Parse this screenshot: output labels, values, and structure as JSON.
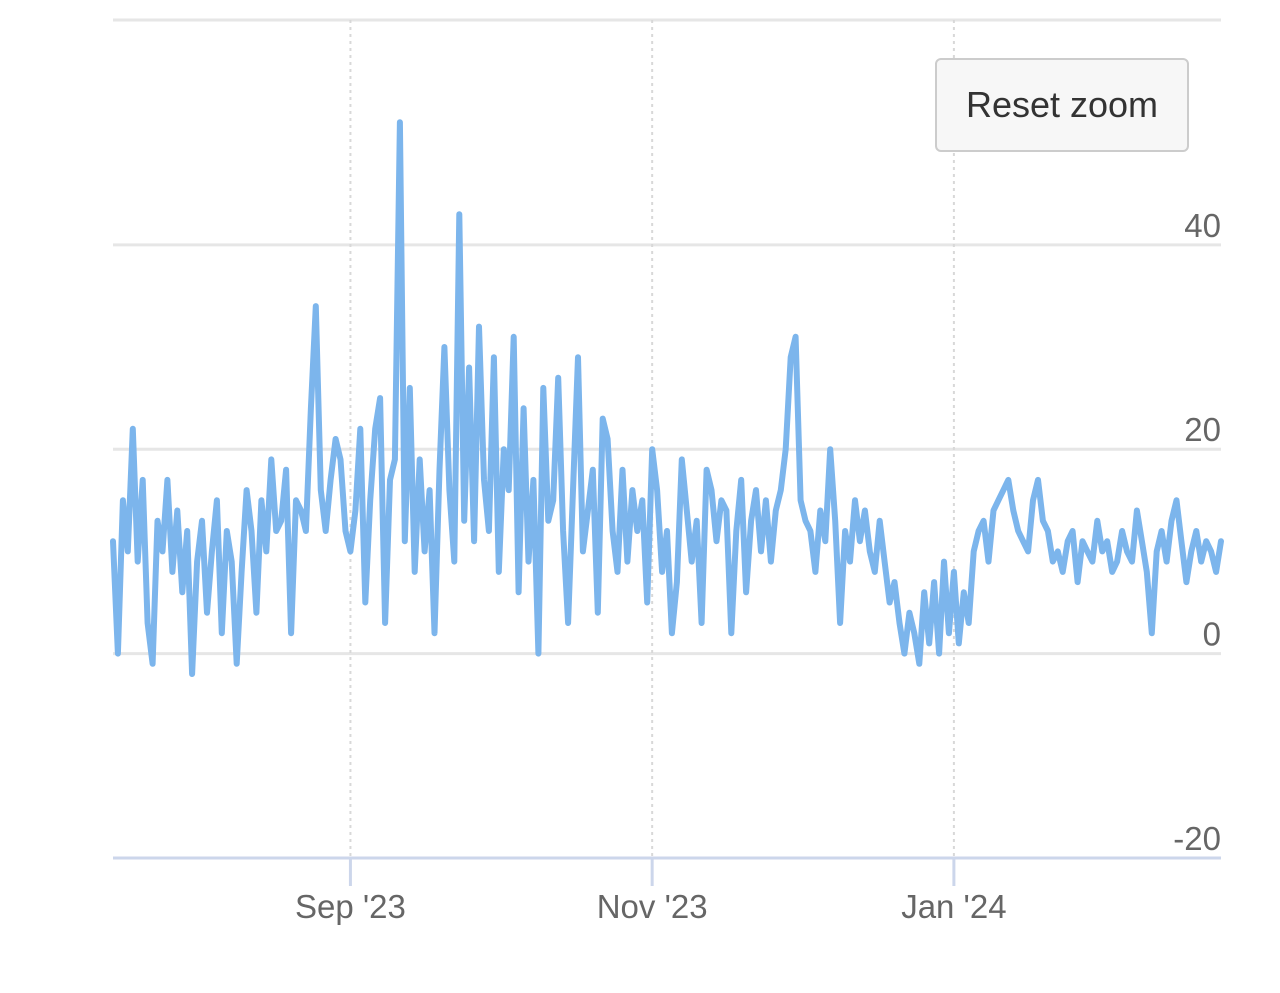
{
  "colors": {
    "series": "#7cb5ec",
    "grid": "#e6e6e6",
    "axis_line": "#ccd6eb",
    "tick_text": "#666666"
  },
  "reset_zoom": {
    "label": "Reset zoom"
  },
  "chart_data": {
    "type": "line",
    "title": "",
    "xlabel": "",
    "ylabel": "",
    "x_ticks": [
      {
        "date": "2023-09-01",
        "label": "Sep '23"
      },
      {
        "date": "2023-11-01",
        "label": "Nov '23"
      },
      {
        "date": "2024-01-01",
        "label": "Jan '24"
      }
    ],
    "xlim": [
      "2023-07-15",
      "2024-02-24"
    ],
    "ylim": [
      -20,
      62
    ],
    "y_ticks": [
      -20,
      0,
      20,
      40
    ],
    "y_axis_side": "right",
    "grid": {
      "horizontal": true,
      "vertical": "dotted"
    },
    "legend": "none",
    "series": [
      {
        "x": [
          "2023-07-15",
          "2023-07-16",
          "2023-07-17",
          "2023-07-18",
          "2023-07-19",
          "2023-07-20",
          "2023-07-21",
          "2023-07-22",
          "2023-07-23",
          "2023-07-24",
          "2023-07-25",
          "2023-07-26",
          "2023-07-27",
          "2023-07-28",
          "2023-07-29",
          "2023-07-30",
          "2023-07-31",
          "2023-08-01",
          "2023-08-02",
          "2023-08-03",
          "2023-08-04",
          "2023-08-05",
          "2023-08-06",
          "2023-08-07",
          "2023-08-08",
          "2023-08-09",
          "2023-08-10",
          "2023-08-11",
          "2023-08-12",
          "2023-08-13",
          "2023-08-14",
          "2023-08-15",
          "2023-08-16",
          "2023-08-17",
          "2023-08-18",
          "2023-08-19",
          "2023-08-20",
          "2023-08-21",
          "2023-08-22",
          "2023-08-23",
          "2023-08-24",
          "2023-08-25",
          "2023-08-26",
          "2023-08-27",
          "2023-08-28",
          "2023-08-29",
          "2023-08-30",
          "2023-08-31",
          "2023-09-01",
          "2023-09-02",
          "2023-09-03",
          "2023-09-04",
          "2023-09-05",
          "2023-09-06",
          "2023-09-07",
          "2023-09-08",
          "2023-09-09",
          "2023-09-10",
          "2023-09-11",
          "2023-09-12",
          "2023-09-13",
          "2023-09-14",
          "2023-09-15",
          "2023-09-16",
          "2023-09-17",
          "2023-09-18",
          "2023-09-19",
          "2023-09-20",
          "2023-09-21",
          "2023-09-22",
          "2023-09-23",
          "2023-09-24",
          "2023-09-25",
          "2023-09-26",
          "2023-09-27",
          "2023-09-28",
          "2023-09-29",
          "2023-09-30",
          "2023-10-01",
          "2023-10-02",
          "2023-10-03",
          "2023-10-04",
          "2023-10-05",
          "2023-10-06",
          "2023-10-07",
          "2023-10-08",
          "2023-10-09",
          "2023-10-10",
          "2023-10-11",
          "2023-10-12",
          "2023-10-13",
          "2023-10-14",
          "2023-10-15",
          "2023-10-16",
          "2023-10-17",
          "2023-10-18",
          "2023-10-19",
          "2023-10-20",
          "2023-10-21",
          "2023-10-22",
          "2023-10-23",
          "2023-10-24",
          "2023-10-25",
          "2023-10-26",
          "2023-10-27",
          "2023-10-28",
          "2023-10-29",
          "2023-10-30",
          "2023-10-31",
          "2023-11-01",
          "2023-11-02",
          "2023-11-03",
          "2023-11-04",
          "2023-11-05",
          "2023-11-06",
          "2023-11-07",
          "2023-11-08",
          "2023-11-09",
          "2023-11-10",
          "2023-11-11",
          "2023-11-12",
          "2023-11-13",
          "2023-11-14",
          "2023-11-15",
          "2023-11-16",
          "2023-11-17",
          "2023-11-18",
          "2023-11-19",
          "2023-11-20",
          "2023-11-21",
          "2023-11-22",
          "2023-11-23",
          "2023-11-24",
          "2023-11-25",
          "2023-11-26",
          "2023-11-27",
          "2023-11-28",
          "2023-11-29",
          "2023-11-30",
          "2023-12-01",
          "2023-12-02",
          "2023-12-03",
          "2023-12-04",
          "2023-12-05",
          "2023-12-06",
          "2023-12-07",
          "2023-12-08",
          "2023-12-09",
          "2023-12-10",
          "2023-12-11",
          "2023-12-12",
          "2023-12-13",
          "2023-12-14",
          "2023-12-15",
          "2023-12-16",
          "2023-12-17",
          "2023-12-18",
          "2023-12-19",
          "2023-12-20",
          "2023-12-21",
          "2023-12-22",
          "2023-12-23",
          "2023-12-24",
          "2023-12-25",
          "2023-12-26",
          "2023-12-27",
          "2023-12-28",
          "2023-12-29",
          "2023-12-30",
          "2023-12-31",
          "2024-01-01",
          "2024-01-02",
          "2024-01-03",
          "2024-01-04",
          "2024-01-05",
          "2024-01-06",
          "2024-01-07",
          "2024-01-08",
          "2024-01-09",
          "2024-01-10",
          "2024-01-11",
          "2024-01-12",
          "2024-01-13",
          "2024-01-14",
          "2024-01-15",
          "2024-01-16",
          "2024-01-17",
          "2024-01-18",
          "2024-01-19",
          "2024-01-20",
          "2024-01-21",
          "2024-01-22",
          "2024-01-23",
          "2024-01-24",
          "2024-01-25",
          "2024-01-26",
          "2024-01-27",
          "2024-01-28",
          "2024-01-29",
          "2024-01-30",
          "2024-01-31",
          "2024-02-01",
          "2024-02-02",
          "2024-02-03",
          "2024-02-04",
          "2024-02-05",
          "2024-02-06",
          "2024-02-07",
          "2024-02-08",
          "2024-02-09",
          "2024-02-10",
          "2024-02-11",
          "2024-02-12",
          "2024-02-13",
          "2024-02-14",
          "2024-02-15",
          "2024-02-16",
          "2024-02-17",
          "2024-02-18",
          "2024-02-19",
          "2024-02-20",
          "2024-02-21",
          "2024-02-22",
          "2024-02-23",
          "2024-02-24"
        ],
        "y": [
          11,
          0,
          15,
          10,
          22,
          9,
          17,
          3,
          -1,
          13,
          10,
          17,
          8,
          14,
          6,
          12,
          -2,
          9,
          13,
          4,
          10,
          15,
          2,
          12,
          9,
          -1,
          8,
          16,
          12,
          4,
          15,
          10,
          19,
          12,
          13,
          18,
          2,
          15,
          14,
          12,
          24,
          34,
          16,
          12,
          17,
          21,
          19,
          12,
          10,
          14,
          22,
          5,
          15,
          22,
          25,
          3,
          17,
          19,
          52,
          11,
          26,
          8,
          19,
          10,
          16,
          2,
          18,
          30,
          16,
          9,
          43,
          13,
          28,
          11,
          32,
          17,
          12,
          29,
          8,
          20,
          16,
          31,
          6,
          24,
          9,
          17,
          0,
          26,
          13,
          15,
          27,
          12,
          3,
          16,
          29,
          10,
          14,
          18,
          4,
          23,
          21,
          12,
          8,
          18,
          9,
          16,
          12,
          15,
          5,
          20,
          16,
          8,
          12,
          2,
          7,
          19,
          14,
          9,
          13,
          3,
          18,
          16,
          11,
          15,
          14,
          2,
          12,
          17,
          6,
          13,
          16,
          10,
          15,
          9,
          14,
          16,
          20,
          29,
          31,
          15,
          13,
          12,
          8,
          14,
          11,
          20,
          13,
          3,
          12,
          9,
          15,
          11,
          14,
          10,
          8,
          13,
          9,
          5,
          7,
          3,
          0,
          4,
          2,
          -1,
          6,
          1,
          7,
          0,
          9,
          2,
          8,
          1,
          6,
          3,
          10,
          12,
          13,
          9,
          14,
          15,
          16,
          17,
          14,
          12,
          11,
          10,
          15,
          17,
          13,
          12,
          9,
          10,
          8,
          11,
          12,
          7,
          11,
          10,
          9,
          13,
          10,
          11,
          8,
          9,
          12,
          10,
          9,
          14,
          11,
          8,
          2,
          10,
          12,
          9,
          13,
          15,
          11,
          7,
          10,
          12,
          9,
          11,
          10,
          8,
          11
        ]
      }
    ]
  }
}
